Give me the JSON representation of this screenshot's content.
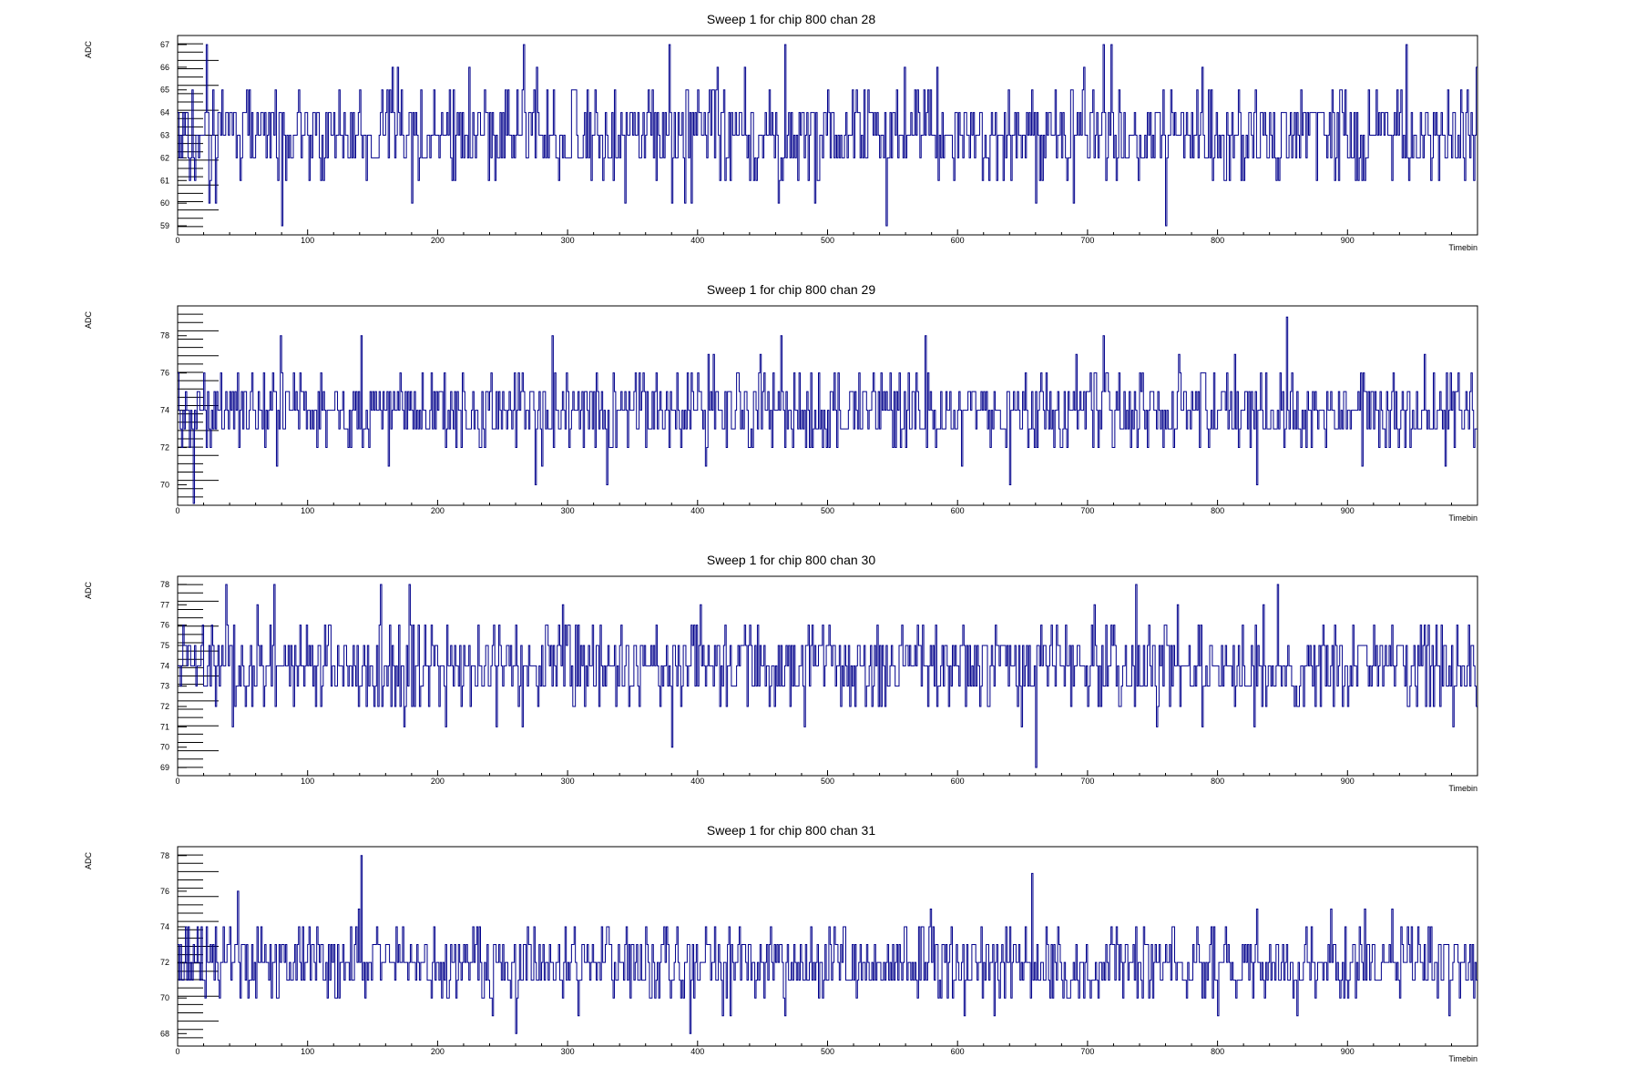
{
  "colors": {
    "trace": "#00008b",
    "axis": "#000000",
    "background": "#ffffff"
  },
  "chart_data": [
    {
      "type": "line",
      "title": "Sweep 1 for chip 800 chan 28",
      "xlabel": "Timebin",
      "ylabel": "ADC",
      "xlim": [
        0,
        1000
      ],
      "ylim": [
        58.6,
        67.4
      ],
      "xticks": [
        0,
        100,
        200,
        300,
        400,
        500,
        600,
        700,
        800,
        900
      ],
      "yticks": [
        59,
        60,
        61,
        62,
        63,
        64,
        65,
        66,
        67
      ],
      "baseline": 63,
      "spread": 2,
      "min": 59,
      "max": 67,
      "seed": 28,
      "spikes": [
        [
          13,
          61
        ],
        [
          22,
          67
        ],
        [
          80,
          59
        ],
        [
          180,
          60
        ],
        [
          266,
          67
        ],
        [
          380,
          60
        ],
        [
          378,
          67
        ],
        [
          395,
          60
        ],
        [
          462,
          60
        ],
        [
          467,
          67
        ],
        [
          490,
          60
        ],
        [
          545,
          59
        ],
        [
          660,
          60
        ],
        [
          718,
          67
        ],
        [
          760,
          59
        ],
        [
          712,
          67
        ],
        [
          945,
          67
        ]
      ]
    },
    {
      "type": "line",
      "title": "Sweep 1 for chip 800 chan 29",
      "xlabel": "Timebin",
      "ylabel": "ADC",
      "xlim": [
        0,
        1000
      ],
      "ylim": [
        68.9,
        79.6
      ],
      "xticks": [
        0,
        100,
        200,
        300,
        400,
        500,
        600,
        700,
        800,
        900
      ],
      "yticks": [
        70,
        72,
        74,
        76,
        78
      ],
      "baseline": 74,
      "spread": 2,
      "min": 69,
      "max": 79,
      "seed": 29,
      "spikes": [
        [
          12,
          69
        ],
        [
          79,
          78
        ],
        [
          141,
          78
        ],
        [
          275,
          70
        ],
        [
          288,
          78
        ],
        [
          330,
          70
        ],
        [
          464,
          78
        ],
        [
          575,
          78
        ],
        [
          640,
          70
        ],
        [
          712,
          78
        ],
        [
          830,
          70
        ],
        [
          853,
          79
        ],
        [
          975,
          71
        ]
      ]
    },
    {
      "type": "line",
      "title": "Sweep 1 for chip 800 chan 30",
      "xlabel": "Timebin",
      "ylabel": "ADC",
      "xlim": [
        0,
        1000
      ],
      "ylim": [
        68.6,
        78.4
      ],
      "xticks": [
        0,
        100,
        200,
        300,
        400,
        500,
        600,
        700,
        800,
        900
      ],
      "yticks": [
        69,
        70,
        71,
        72,
        73,
        74,
        75,
        76,
        77,
        78
      ],
      "baseline": 74,
      "spread": 2,
      "min": 69,
      "max": 78,
      "seed": 30,
      "spikes": [
        [
          37,
          78
        ],
        [
          74,
          78
        ],
        [
          156,
          78
        ],
        [
          178,
          78
        ],
        [
          380,
          70
        ],
        [
          660,
          69
        ],
        [
          737,
          78
        ],
        [
          846,
          78
        ],
        [
          981,
          71
        ]
      ]
    },
    {
      "type": "line",
      "title": "Sweep 1 for chip 800 chan 31",
      "xlabel": "Timebin",
      "ylabel": "ADC",
      "xlim": [
        0,
        1000
      ],
      "ylim": [
        67.3,
        78.5
      ],
      "xticks": [
        0,
        100,
        200,
        300,
        400,
        500,
        600,
        700,
        800,
        900
      ],
      "yticks": [
        68,
        70,
        72,
        74,
        76,
        78
      ],
      "baseline": 72,
      "spread": 2,
      "min": 68,
      "max": 78,
      "seed": 31,
      "spikes": [
        [
          141,
          78
        ],
        [
          260,
          68
        ],
        [
          394,
          68
        ],
        [
          657,
          77
        ],
        [
          46,
          76
        ],
        [
          800,
          69
        ]
      ]
    }
  ]
}
